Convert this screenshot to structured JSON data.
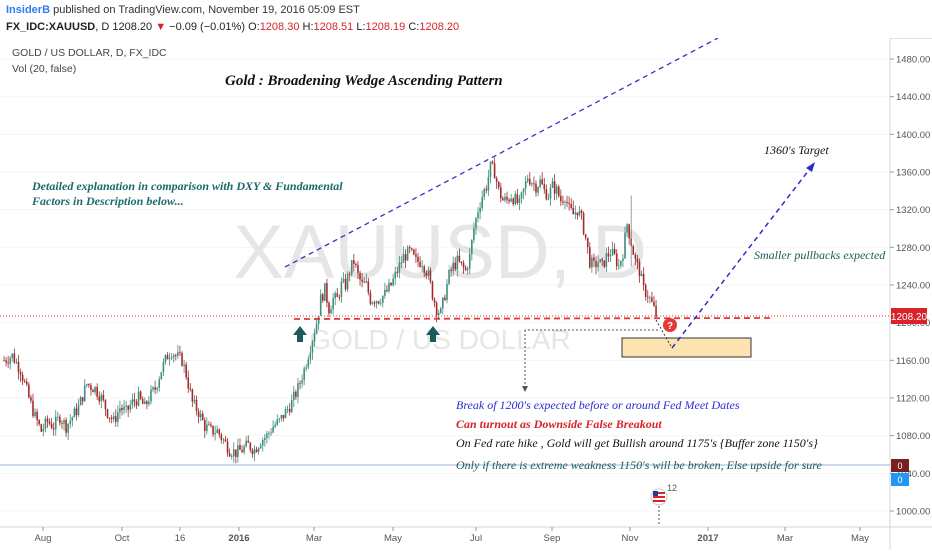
{
  "header": {
    "author": "InsiderB",
    "published": "published on TradingView.com, November 19, 2016 05:09 EST",
    "symbol": "FX_IDC:XAUUSD",
    "interval": "D",
    "price": "1208.20",
    "change_icon": "down-triangle-icon",
    "change": "−0.09 (−0.01%)",
    "o_label": "O:",
    "o_value": "1208.30",
    "h_label": "H:",
    "h_value": "1208.51",
    "l_label": "L:",
    "l_value": "1208.19",
    "c_label": "C:",
    "c_value": "1208.20"
  },
  "legend": {
    "main": "GOLD / US DOLLAR, D, FX_IDC",
    "vol": "Vol (20, false)"
  },
  "watermark": {
    "symbol": "XAUUSD, D",
    "name": "GOLD / US DOLLAR"
  },
  "annotations": {
    "title": "Gold : Broadening Wedge Ascending Pattern",
    "explanation_1": "Detailed explanation in comparison with DXY & Fundamental",
    "explanation_2": "Factors in Description below...",
    "target": "1360's Target",
    "pullbacks": "Smaller pullbacks expected",
    "note_1": "Break of 1200's expected before or around Fed Meet Dates",
    "note_2": "Can turnout as Downside False Breakout",
    "note_3": "On Fed rate hike , Gold will get Bullish around 1175's {Buffer zone 1150's}",
    "note_4": "Only if there is extreme weakness 1150's will be broken, Else upside for sure",
    "question_mark": "?",
    "event_badge": "12"
  },
  "colors": {
    "up": "#3e8e7e",
    "down": "#a32a2a",
    "wedge": "#3333cc",
    "support": "#e53935",
    "zone_fill": "#fde3b0",
    "zone_border": "#333333",
    "explanation_text": "#1c6a6a",
    "note_1_text": "#2b2bd1",
    "note_2_text": "#d8232a",
    "note_3_text": "#111111",
    "note_4_text": "#1c5a5a",
    "price_tag": "#d8232a"
  },
  "chart_data": {
    "type": "candlestick",
    "title": "GOLD / US DOLLAR, D, FX_IDC",
    "x": [
      "Aug",
      "Oct",
      "16",
      "2016",
      "Mar",
      "May",
      "Jul",
      "Sep",
      "Nov",
      "2017",
      "Mar",
      "May"
    ],
    "ylim": [
      990,
      1500
    ],
    "y_ticks": [
      "1480.00",
      "1440.00",
      "1400.00",
      "1360.00",
      "1320.00",
      "1280.00",
      "1240.00",
      "1200.00",
      "1160.00",
      "1120.00",
      "1080.00",
      "1040.00",
      "1000.00"
    ],
    "last_price": "1208.20",
    "volume_labels": [
      "0",
      "0"
    ],
    "close_path": [
      [
        0,
        1160
      ],
      [
        4,
        1165
      ],
      [
        8,
        1150
      ],
      [
        12,
        1120
      ],
      [
        15,
        1100
      ],
      [
        18,
        1085
      ],
      [
        21,
        1095
      ],
      [
        24,
        1090
      ],
      [
        27,
        1100
      ],
      [
        30,
        1090
      ],
      [
        33,
        1100
      ],
      [
        36,
        1110
      ],
      [
        40,
        1135
      ],
      [
        44,
        1130
      ],
      [
        47,
        1120
      ],
      [
        50,
        1105
      ],
      [
        53,
        1095
      ],
      [
        56,
        1110
      ],
      [
        59,
        1105
      ],
      [
        62,
        1115
      ],
      [
        65,
        1120
      ],
      [
        68,
        1110
      ],
      [
        70,
        1120
      ],
      [
        73,
        1130
      ],
      [
        76,
        1150
      ],
      [
        79,
        1165
      ],
      [
        81,
        1170
      ],
      [
        83,
        1165
      ],
      [
        86,
        1160
      ],
      [
        88,
        1145
      ],
      [
        91,
        1115
      ],
      [
        94,
        1105
      ],
      [
        97,
        1090
      ],
      [
        100,
        1085
      ],
      [
        103,
        1085
      ],
      [
        106,
        1075
      ],
      [
        109,
        1065
      ],
      [
        112,
        1062
      ],
      [
        115,
        1065
      ],
      [
        118,
        1070
      ],
      [
        121,
        1065
      ],
      [
        124,
        1075
      ],
      [
        127,
        1080
      ],
      [
        130,
        1090
      ],
      [
        133,
        1095
      ],
      [
        136,
        1105
      ],
      [
        139,
        1115
      ],
      [
        142,
        1130
      ],
      [
        145,
        1150
      ],
      [
        148,
        1175
      ],
      [
        151,
        1200
      ],
      [
        153,
        1225
      ],
      [
        155,
        1235
      ],
      [
        157,
        1215
      ],
      [
        159,
        1225
      ],
      [
        161,
        1225
      ],
      [
        163,
        1240
      ],
      [
        165,
        1240
      ],
      [
        167,
        1255
      ],
      [
        169,
        1265
      ],
      [
        171,
        1250
      ],
      [
        173,
        1240
      ],
      [
        175,
        1240
      ],
      [
        177,
        1225
      ],
      [
        179,
        1225
      ],
      [
        181,
        1225
      ],
      [
        184,
        1230
      ],
      [
        187,
        1240
      ],
      [
        190,
        1255
      ],
      [
        193,
        1270
      ],
      [
        196,
        1275
      ],
      [
        199,
        1265
      ],
      [
        202,
        1265
      ],
      [
        205,
        1250
      ],
      [
        207,
        1230
      ],
      [
        209,
        1215
      ],
      [
        211,
        1210
      ],
      [
        213,
        1230
      ],
      [
        215,
        1250
      ],
      [
        217,
        1260
      ],
      [
        219,
        1265
      ],
      [
        221,
        1260
      ],
      [
        223,
        1255
      ],
      [
        225,
        1270
      ],
      [
        227,
        1300
      ],
      [
        229,
        1320
      ],
      [
        231,
        1335
      ],
      [
        233,
        1345
      ],
      [
        235,
        1365
      ],
      [
        237,
        1360
      ],
      [
        239,
        1340
      ],
      [
        241,
        1330
      ],
      [
        243,
        1330
      ],
      [
        245,
        1335
      ],
      [
        247,
        1330
      ],
      [
        249,
        1325
      ],
      [
        251,
        1340
      ],
      [
        253,
        1355
      ],
      [
        255,
        1350
      ],
      [
        257,
        1345
      ],
      [
        259,
        1350
      ],
      [
        261,
        1340
      ],
      [
        263,
        1335
      ],
      [
        265,
        1345
      ],
      [
        267,
        1340
      ],
      [
        269,
        1330
      ],
      [
        271,
        1335
      ],
      [
        273,
        1320
      ],
      [
        275,
        1315
      ],
      [
        277,
        1320
      ],
      [
        279,
        1310
      ],
      [
        281,
        1290
      ],
      [
        283,
        1265
      ],
      [
        285,
        1260
      ],
      [
        287,
        1265
      ],
      [
        289,
        1260
      ],
      [
        291,
        1270
      ],
      [
        293,
        1275
      ],
      [
        295,
        1270
      ],
      [
        297,
        1260
      ],
      [
        299,
        1275
      ],
      [
        301,
        1305
      ],
      [
        303,
        1285
      ],
      [
        305,
        1265
      ],
      [
        307,
        1255
      ],
      [
        309,
        1235
      ],
      [
        311,
        1230
      ],
      [
        313,
        1220
      ],
      [
        315,
        1208
      ]
    ]
  }
}
